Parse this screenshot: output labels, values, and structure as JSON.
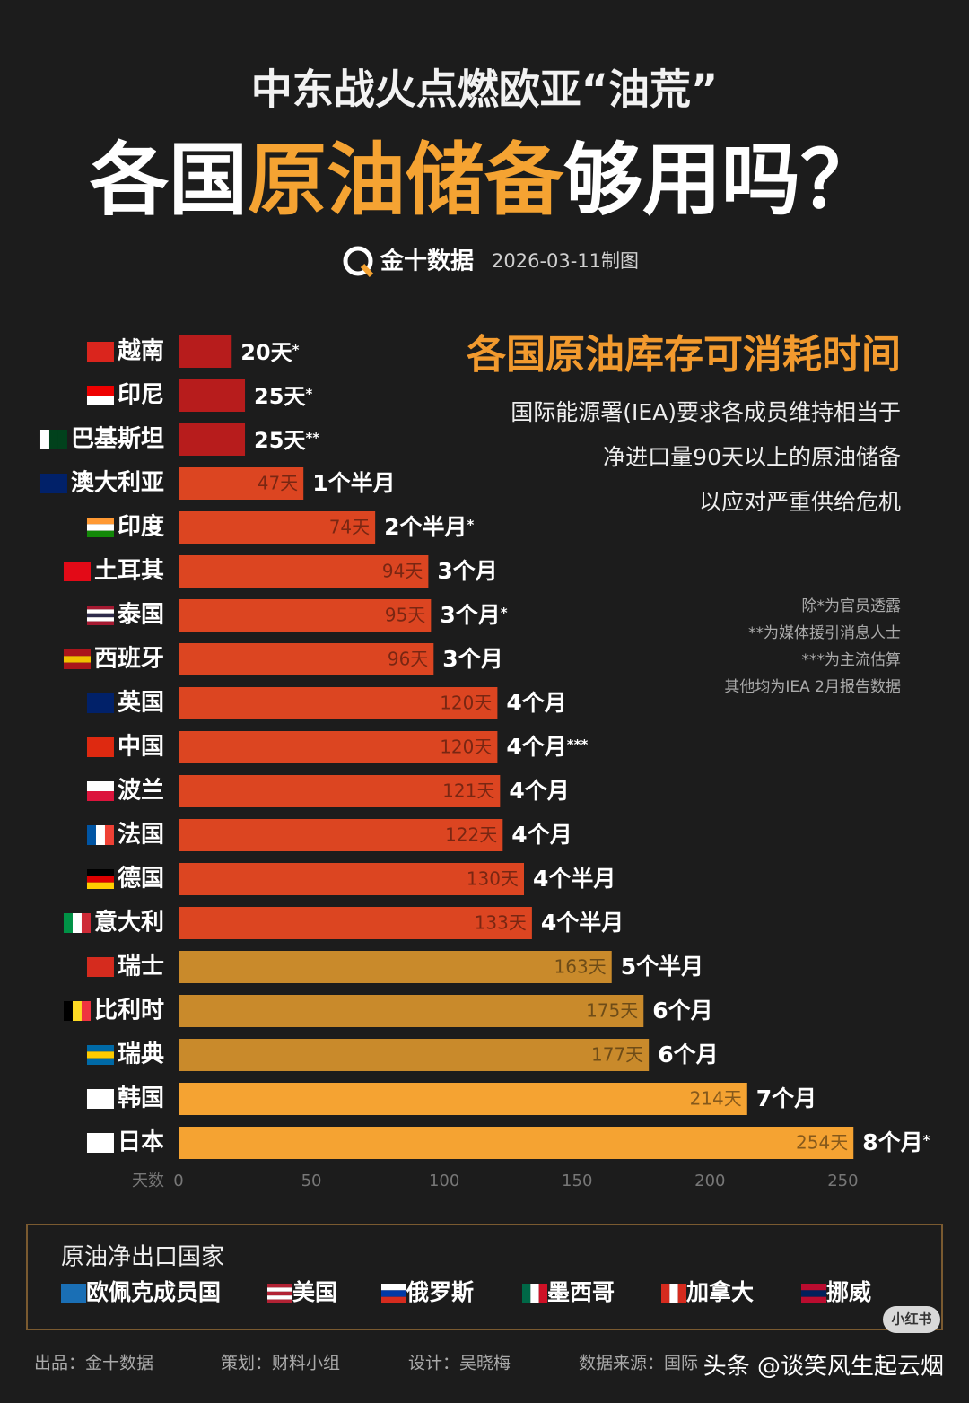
{
  "header": {
    "title": "中东战火点燃欧亚“油荒”",
    "headline_1": "各国",
    "headline_2": "原油储备",
    "headline_3": "够用吗？",
    "brand": "金十数据",
    "date": "2026-03-11制图"
  },
  "chart_data": {
    "type": "bar",
    "orientation": "horizontal",
    "title": "各国原油库存可消耗时间",
    "notes": [
      "国际能源署(IEA)要求各成员维持相当于",
      "净进口量90天以上的原油储备",
      "以应对严重供给危机"
    ],
    "footnotes": [
      "除*为官员透露",
      "**为媒体援引消息人士",
      "***为主流估算",
      "其他均为IEA 2月报告数据"
    ],
    "categories": [
      "越南",
      "印尼",
      "巴基斯坦",
      "澳大利亚",
      "印度",
      "土耳其",
      "泰国",
      "西班牙",
      "英国",
      "中国",
      "波兰",
      "法国",
      "德国",
      "意大利",
      "瑞士",
      "比利时",
      "瑞典",
      "韩国",
      "日本"
    ],
    "values": [
      20,
      25,
      25,
      47,
      74,
      94,
      95,
      96,
      120,
      120,
      121,
      122,
      130,
      133,
      163,
      175,
      177,
      214,
      254
    ],
    "value_labels": [
      "20天",
      "25天",
      "25天",
      "47天",
      "74天",
      "94天",
      "95天",
      "96天",
      "120天",
      "120天",
      "121天",
      "122天",
      "130天",
      "133天",
      "163天",
      "175天",
      "177天",
      "214天",
      "254天"
    ],
    "duration_labels": [
      null,
      null,
      null,
      "1个半月",
      "2个半月",
      "3个月",
      "3个月",
      "3个月",
      "4个月",
      "4个月",
      "4个月",
      "4个月",
      "4个半月",
      "4个半月",
      "5个半月",
      "6个月",
      "6个月",
      "7个月",
      "8个月"
    ],
    "footnote_marks": [
      "*",
      "*",
      "**",
      null,
      "*",
      null,
      "*",
      null,
      null,
      "***",
      null,
      null,
      null,
      null,
      null,
      null,
      null,
      null,
      "*"
    ],
    "colors": [
      "#b71c1c",
      "#b71c1c",
      "#b71c1c",
      "#dc4521",
      "#dc4521",
      "#dc4521",
      "#dc4521",
      "#dc4521",
      "#dc4521",
      "#dc4521",
      "#dc4521",
      "#dc4521",
      "#dc4521",
      "#dc4521",
      "#c98a2b",
      "#c98a2b",
      "#c98a2b",
      "#f5a332",
      "#f5a332"
    ],
    "xlim": [
      0,
      260
    ],
    "xticks": [
      0,
      50,
      100,
      150,
      200,
      250
    ],
    "x_label": "天数"
  },
  "exporters": {
    "title": "原油净出口国家",
    "items": [
      "欧佩克成员国",
      "美国",
      "俄罗斯",
      "墨西哥",
      "加拿大",
      "挪威"
    ]
  },
  "footer": {
    "producer": "出品：金十数据",
    "planner": "策划：财料小组",
    "designer": "设计：吴晓梅",
    "source": "数据来源：国际",
    "watermark": "头条 @谈笑风生起云烟",
    "badge": "小红书"
  }
}
